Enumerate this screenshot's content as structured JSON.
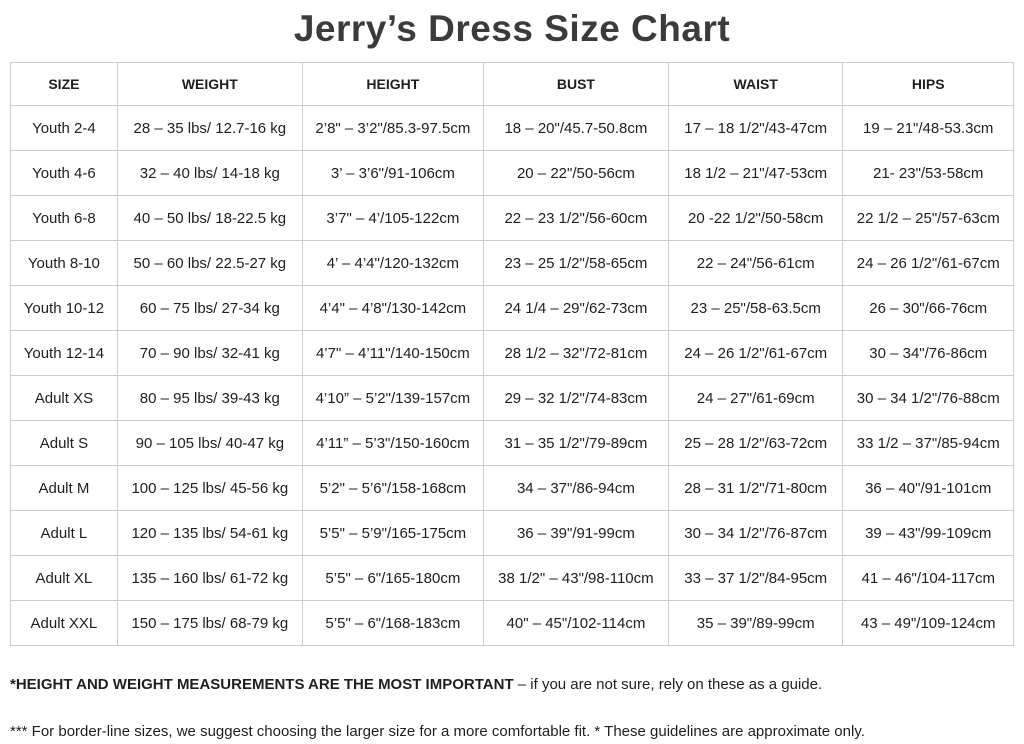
{
  "title": "Jerry’s Dress Size Chart",
  "table": {
    "columns": [
      "SIZE",
      "WEIGHT",
      "HEIGHT",
      "BUST",
      "WAIST",
      "HIPS"
    ],
    "column_keys": [
      "size",
      "weight",
      "height",
      "bust",
      "waist",
      "hips"
    ],
    "rows": [
      [
        "Youth 2-4",
        "28 – 35 lbs/ 12.7-16 kg",
        "2’8\" – 3’2\"/85.3-97.5cm",
        "18 – 20\"/45.7-50.8cm",
        "17 – 18 1/2\"/43-47cm",
        "19 – 21\"/48-53.3cm"
      ],
      [
        "Youth 4-6",
        "32 – 40 lbs/ 14-18 kg",
        "3’ – 3’6\"/91-106cm",
        "20 – 22\"/50-56cm",
        "18 1/2 – 21\"/47-53cm",
        "21- 23\"/53-58cm"
      ],
      [
        "Youth 6-8",
        "40 – 50 lbs/ 18-22.5 kg",
        "3’7\" – 4’/105-122cm",
        "22 – 23 1/2\"/56-60cm",
        "20 -22 1/2\"/50-58cm",
        "22 1/2 – 25\"/57-63cm"
      ],
      [
        "Youth 8-10",
        "50 – 60 lbs/ 22.5-27 kg",
        "4’ – 4’4\"/120-132cm",
        "23 – 25 1/2\"/58-65cm",
        "22 – 24\"/56-61cm",
        "24 – 26 1/2\"/61-67cm"
      ],
      [
        "Youth 10-12",
        "60 – 75 lbs/ 27-34 kg",
        "4’4\" – 4’8\"/130-142cm",
        "24 1/4 – 29\"/62-73cm",
        "23 – 25\"/58-63.5cm",
        "26 – 30\"/66-76cm"
      ],
      [
        "Youth 12-14",
        "70 – 90 lbs/ 32-41 kg",
        "4’7\" – 4’11\"/140-150cm",
        "28 1/2 – 32\"/72-81cm",
        "24 – 26 1/2\"/61-67cm",
        "30 – 34\"/76-86cm"
      ],
      [
        "Adult XS",
        "80 – 95 lbs/ 39-43 kg",
        "4’10” – 5’2\"/139-157cm",
        "29 – 32 1/2\"/74-83cm",
        "24 – 27\"/61-69cm",
        "30 – 34 1/2\"/76-88cm"
      ],
      [
        "Adult S",
        "90 – 105 lbs/ 40-47 kg",
        "4’11” – 5’3\"/150-160cm",
        "31 – 35 1/2\"/79-89cm",
        "25 – 28 1/2\"/63-72cm",
        "33 1/2 – 37\"/85-94cm"
      ],
      [
        "Adult M",
        "100 – 125 lbs/ 45-56 kg",
        "5’2\" – 5’6\"/158-168cm",
        "34 – 37\"/86-94cm",
        "28 – 31 1/2\"/71-80cm",
        "36 – 40\"/91-101cm"
      ],
      [
        "Adult L",
        "120 – 135 lbs/ 54-61 kg",
        "5’5\" – 5’9\"/165-175cm",
        "36 – 39\"/91-99cm",
        "30 – 34 1/2\"/76-87cm",
        "39 – 43\"/99-109cm"
      ],
      [
        "Adult XL",
        "135 – 160 lbs/ 61-72 kg",
        "5’5\" – 6\"/165-180cm",
        "38 1/2\" – 43\"/98-110cm",
        "33 – 37 1/2\"/84-95cm",
        "41 – 46\"/104-117cm"
      ],
      [
        "Adult XXL",
        "150 – 175 lbs/ 68-79 kg",
        "5’5\" – 6\"/168-183cm",
        "40\" – 45\"/102-114cm",
        "35 – 39\"/89-99cm",
        "43 – 49\"/109-124cm"
      ]
    ]
  },
  "notes": {
    "note1_bold": "*HEIGHT AND WEIGHT MEASUREMENTS ARE THE MOST IMPORTANT",
    "note1_rest": " – if you are not sure, rely on these as a guide.",
    "note2": "*** For border-line sizes, we suggest choosing the larger size for a more comfortable fit. * These guidelines are approximate only."
  },
  "colors": {
    "title_text": "#3b3b3b",
    "body_text": "#202020",
    "table_border": "#cccccc",
    "background": "#ffffff"
  }
}
